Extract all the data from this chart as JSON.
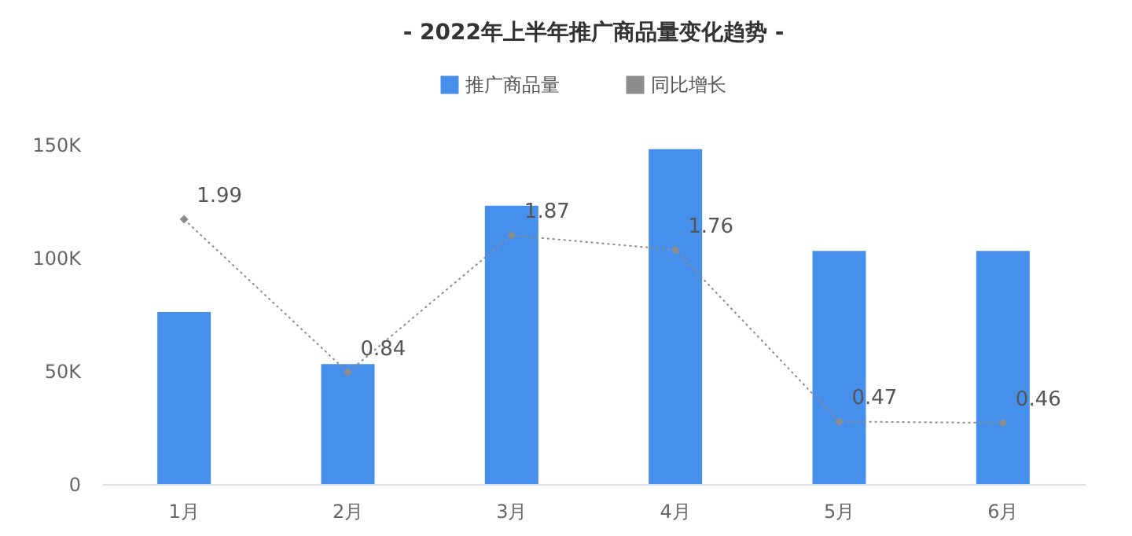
{
  "chart_data": {
    "type": "bar",
    "title": "- 2022年上半年推广商品量变化趋势 -",
    "categories": [
      "1月",
      "2月",
      "3月",
      "4月",
      "5月",
      "6月"
    ],
    "series": [
      {
        "name": "推广商品量",
        "color": "#4690ec",
        "values": [
          76000,
          53000,
          123000,
          148000,
          103000,
          103000
        ]
      },
      {
        "name": "同比增长",
        "type": "line",
        "axis": "y2",
        "color": "#8c8c8c",
        "marker": "diamond",
        "line_style": "dotted",
        "data_labels": true,
        "values": [
          1.99,
          0.84,
          1.87,
          1.76,
          0.47,
          0.46
        ]
      }
    ],
    "ylim": [
      0,
      150000
    ],
    "yticks": [
      {
        "value": 0,
        "label": "0"
      },
      {
        "value": 50000,
        "label": "50K"
      },
      {
        "value": 100000,
        "label": "100K"
      },
      {
        "value": 150000,
        "label": "150K"
      }
    ],
    "grid": false,
    "legend": "top"
  }
}
